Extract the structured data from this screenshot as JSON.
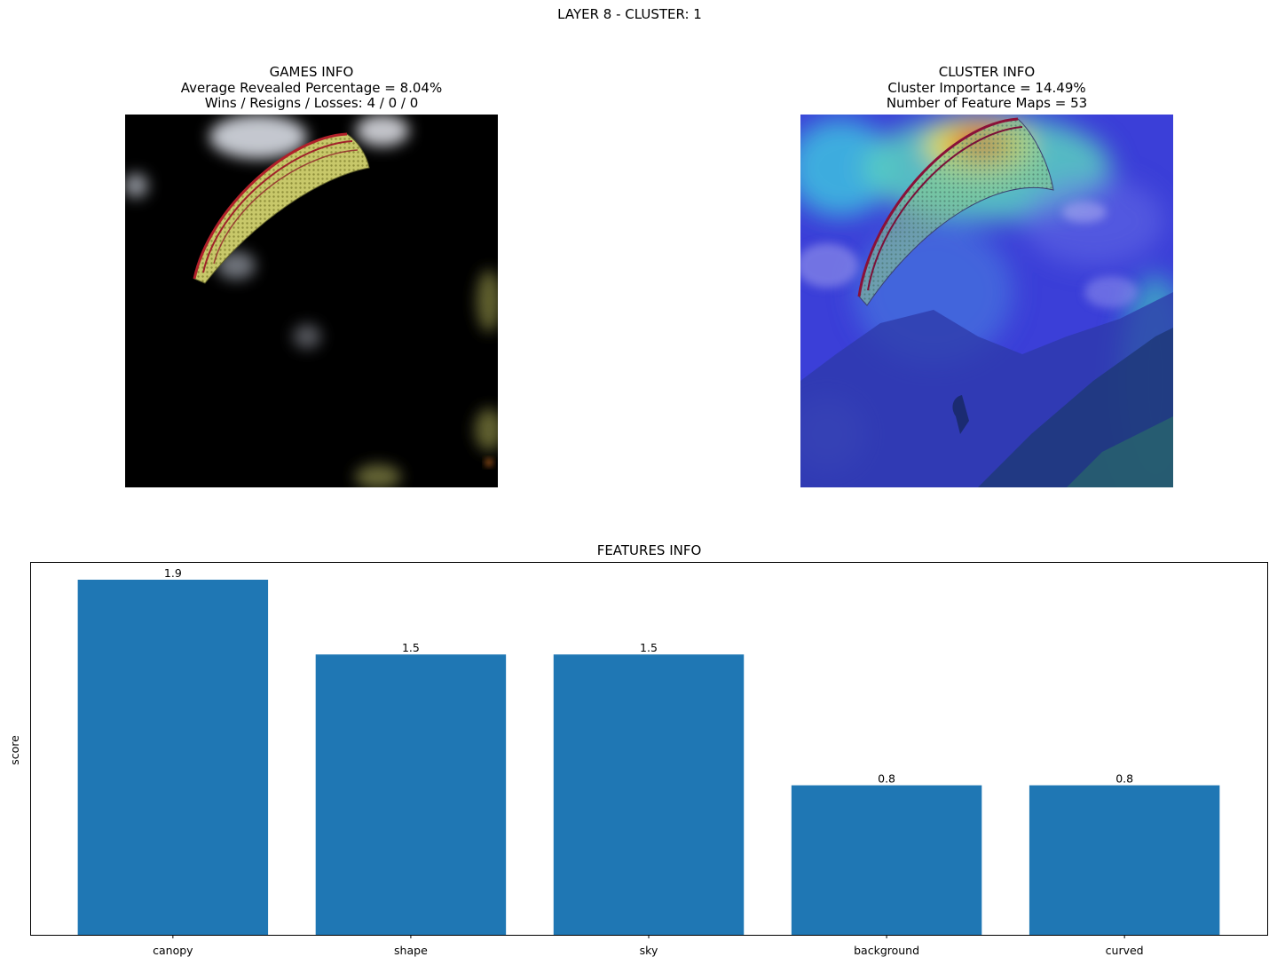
{
  "suptitle": "LAYER 8 - CLUSTER: 1",
  "games_info": {
    "title": "GAMES INFO",
    "avg_revealed": "Average Revealed Percentage = 8.04%",
    "wins_line": "Wins / Resigns / Losses: 4 / 0 / 0"
  },
  "cluster_info": {
    "title": "CLUSTER INFO",
    "importance": "Cluster Importance = 14.49%",
    "feature_maps": "Number of Feature Maps = 53"
  },
  "chart_data": {
    "type": "bar",
    "title": "FEATURES INFO",
    "xlabel": "",
    "ylabel": "score",
    "categories": [
      "canopy",
      "shape",
      "sky",
      "background",
      "curved"
    ],
    "values": [
      1.9,
      1.5,
      1.5,
      0.8,
      0.8
    ],
    "data_labels": [
      "1.9",
      "1.5",
      "1.5",
      "0.8",
      "0.8"
    ],
    "ylim": [
      0,
      1.995
    ],
    "yticks_visible": false,
    "grid": false,
    "bar_color": "#1f77b4"
  }
}
